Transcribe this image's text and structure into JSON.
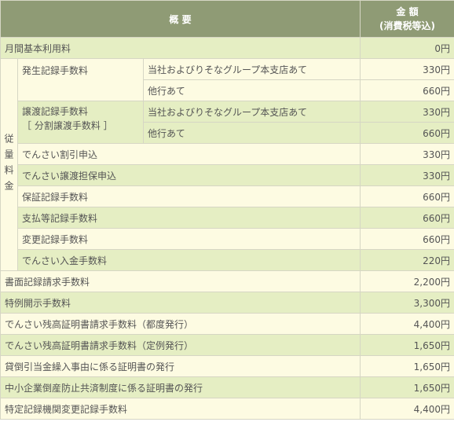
{
  "header": {
    "summary": "概 要",
    "amount": "金 額",
    "amount_note": "(消費税等込)"
  },
  "rows": [
    {
      "label": "月間基本利用料",
      "amount": "0円"
    }
  ],
  "usage": {
    "label": "従量料金",
    "items": [
      {
        "label": "発生記録手数料",
        "options": [
          {
            "label": "当社およびりそなグループ本支店あて",
            "amount": "330円"
          },
          {
            "label": "他行あて",
            "amount": "660円"
          }
        ]
      },
      {
        "label": "譲渡記録手数料",
        "note": "［ 分割譲渡手数料 ］",
        "options": [
          {
            "label": "当社およびりそなグループ本支店あて",
            "amount": "330円"
          },
          {
            "label": "他行あて",
            "amount": "660円"
          }
        ]
      },
      {
        "label": "でんさい割引申込",
        "amount": "330円"
      },
      {
        "label": "でんさい譲渡担保申込",
        "amount": "330円"
      },
      {
        "label": "保証記録手数料",
        "amount": "660円"
      },
      {
        "label": "支払等記録手数料",
        "amount": "660円"
      },
      {
        "label": "変更記録手数料",
        "amount": "660円"
      },
      {
        "label": "でんさい入金手数料",
        "amount": "220円"
      }
    ]
  },
  "other_rows": [
    {
      "label": "書面記録請求手数料",
      "amount": "2,200円"
    },
    {
      "label": "特例開示手数料",
      "amount": "3,300円"
    },
    {
      "label": "でんさい残高証明書請求手数料（都度発行）",
      "amount": "4,400円"
    },
    {
      "label": "でんさい残高証明書請求手数料（定例発行）",
      "amount": "1,650円"
    },
    {
      "label": "貸倒引当金繰入事由に係る証明書の発行",
      "amount": "1,650円"
    },
    {
      "label": "中小企業倒産防止共済制度に係る証明書の発行",
      "amount": "1,650円"
    },
    {
      "label": "特定記録機関変更記録手数料",
      "amount": "4,400円"
    }
  ]
}
